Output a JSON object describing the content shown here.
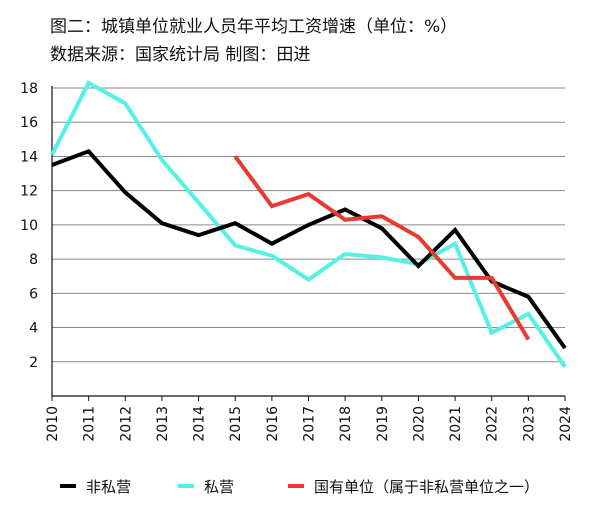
{
  "header": {
    "title": "图二：城镇单位就业人员年平均工资增速（单位：%）",
    "subtitle": "数据来源：国家统计局  制图：田进"
  },
  "chart_data": {
    "type": "line",
    "title": "图二：城镇单位就业人员年平均工资增速（单位：%）",
    "subtitle": "数据来源：国家统计局  制图：田进",
    "xlabel": "",
    "ylabel": "",
    "x": [
      "2010",
      "2011",
      "2012",
      "2013",
      "2014",
      "2015",
      "2016",
      "2017",
      "2018",
      "2019",
      "2020",
      "2021",
      "2022",
      "2023",
      "2024"
    ],
    "ylim": [
      0,
      18
    ],
    "yticks": [
      2,
      4,
      6,
      8,
      10,
      12,
      14,
      16,
      18
    ],
    "grid": "horizontal",
    "legend_position": "bottom",
    "series": [
      {
        "name": "非私营",
        "color": "#000000",
        "values": [
          13.5,
          14.3,
          11.9,
          10.1,
          9.4,
          10.1,
          8.9,
          10.0,
          10.9,
          9.8,
          7.6,
          9.7,
          6.7,
          5.8,
          2.8
        ]
      },
      {
        "name": "私营",
        "color": "#55f0e6",
        "values": [
          14.1,
          18.3,
          17.1,
          13.8,
          11.3,
          8.8,
          8.2,
          6.8,
          8.3,
          8.1,
          7.7,
          8.9,
          3.7,
          4.8,
          1.7
        ]
      },
      {
        "name": "国有单位（属于非私营单位之一）",
        "color": "#e83a32",
        "values": [
          null,
          null,
          null,
          null,
          null,
          14.0,
          11.1,
          11.8,
          10.3,
          10.5,
          9.3,
          6.9,
          6.9,
          3.3,
          null
        ]
      }
    ]
  }
}
